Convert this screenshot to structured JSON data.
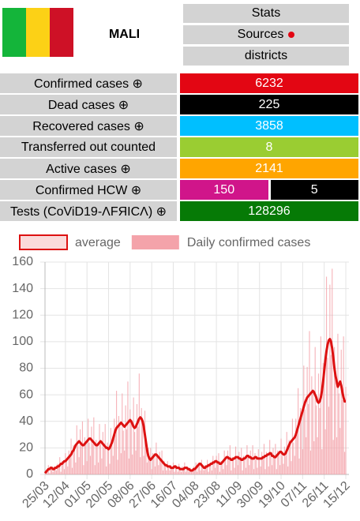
{
  "header": {
    "country": "MALI",
    "buttons": [
      "Stats",
      "Sources",
      "districts"
    ]
  },
  "table": {
    "rows": [
      {
        "label": "Confirmed cases ⊕",
        "values": [
          6232
        ],
        "colors": [
          "#e30613"
        ]
      },
      {
        "label": "Dead cases ⊕",
        "values": [
          225
        ],
        "colors": [
          "#000000"
        ]
      },
      {
        "label": "Recovered cases ⊕",
        "values": [
          3858
        ],
        "colors": [
          "#00bfff"
        ]
      },
      {
        "label": "Transferred out counted",
        "values": [
          8
        ],
        "colors": [
          "#9acd32"
        ]
      },
      {
        "label": "Active cases ⊕",
        "values": [
          2141
        ],
        "colors": [
          "#ffa500"
        ]
      },
      {
        "label": "Confirmed HCW ⊕",
        "values": [
          150,
          5
        ],
        "colors": [
          "#d0158a",
          "#000000"
        ]
      },
      {
        "label": "Tests (CoViD19-ΛFЯICΛ) ⊕",
        "values": [
          128296
        ],
        "colors": [
          "#067a06"
        ]
      }
    ]
  },
  "chart_data": {
    "type": "bar",
    "categories": [
      "25/03",
      null,
      null,
      null,
      null,
      null,
      null,
      null,
      null,
      null,
      null,
      null,
      null,
      null,
      null,
      null,
      null,
      null,
      "12/04",
      null,
      null,
      null,
      null,
      null,
      null,
      null,
      null,
      null,
      null,
      null,
      null,
      null,
      null,
      null,
      null,
      null,
      null,
      "01/05",
      null,
      null,
      null,
      null,
      null,
      null,
      null,
      null,
      null,
      null,
      null,
      null,
      null,
      null,
      null,
      null,
      null,
      null,
      "20/05",
      null,
      null,
      null,
      null,
      null,
      null,
      null,
      null,
      null,
      null,
      null,
      null,
      null,
      null,
      null,
      null,
      null,
      null,
      "08/06",
      null,
      null,
      null,
      null,
      null,
      null,
      null,
      null,
      null,
      null,
      null,
      null,
      null,
      null,
      null,
      null,
      null,
      null,
      "27/06",
      null,
      null,
      null,
      null,
      null,
      null,
      null,
      null,
      null,
      null,
      null,
      null,
      null,
      null,
      null,
      null,
      null,
      null,
      "16/07",
      null,
      null,
      null,
      null,
      null,
      null,
      null,
      null,
      null,
      null,
      null,
      null,
      null,
      null,
      null,
      null,
      null,
      null,
      "04/08",
      null,
      null,
      null,
      null,
      null,
      null,
      null,
      null,
      null,
      null,
      null,
      null,
      null,
      null,
      null,
      null,
      null,
      null,
      "23/08",
      null,
      null,
      null,
      null,
      null,
      null,
      null,
      null,
      null,
      null,
      null,
      null,
      null,
      null,
      null,
      null,
      null,
      null,
      "11/09",
      null,
      null,
      null,
      null,
      null,
      null,
      null,
      null,
      null,
      null,
      null,
      null,
      null,
      null,
      null,
      null,
      null,
      null,
      "30/09",
      null,
      null,
      null,
      null,
      null,
      null,
      null,
      null,
      null,
      null,
      null,
      null,
      null,
      null,
      null,
      null,
      null,
      null,
      "19/10",
      null,
      null,
      null,
      null,
      null,
      null,
      null,
      null,
      null,
      null,
      null,
      null,
      null,
      null,
      null,
      null,
      null,
      null,
      "07/11",
      null,
      null,
      null,
      null,
      null,
      null,
      null,
      null,
      null,
      null,
      null,
      null,
      null,
      null,
      null,
      null,
      null,
      null,
      "26/11",
      null,
      null,
      null,
      null,
      null,
      null,
      null,
      null,
      null,
      null,
      null,
      null,
      null,
      null,
      null,
      null,
      null,
      null,
      "15/12"
    ],
    "series": [
      {
        "name": "average",
        "type": "line",
        "color": "#dd1111",
        "values": [
          1,
          2,
          3,
          4,
          4,
          5,
          5,
          4,
          4,
          5,
          5,
          6,
          6,
          7,
          8,
          8,
          9,
          10,
          10,
          11,
          12,
          13,
          14,
          15,
          17,
          18,
          20,
          22,
          23,
          24,
          25,
          24,
          23,
          22,
          22,
          23,
          24,
          25,
          26,
          27,
          27,
          26,
          25,
          24,
          23,
          22,
          22,
          23,
          24,
          25,
          24,
          23,
          22,
          21,
          20,
          20,
          19,
          20,
          22,
          24,
          27,
          30,
          33,
          35,
          36,
          37,
          38,
          39,
          38,
          37,
          36,
          37,
          38,
          39,
          40,
          41,
          40,
          38,
          36,
          35,
          36,
          38,
          40,
          42,
          43,
          42,
          40,
          36,
          30,
          24,
          18,
          14,
          12,
          11,
          12,
          13,
          14,
          15,
          15,
          14,
          13,
          12,
          11,
          10,
          9,
          8,
          7,
          7,
          6,
          6,
          6,
          5,
          5,
          5,
          6,
          6,
          5,
          5,
          5,
          4,
          4,
          4,
          4,
          5,
          5,
          5,
          4,
          4,
          3,
          3,
          3,
          4,
          4,
          5,
          6,
          7,
          8,
          8,
          7,
          6,
          5,
          5,
          6,
          6,
          7,
          7,
          8,
          8,
          9,
          9,
          10,
          10,
          9,
          9,
          8,
          8,
          9,
          10,
          11,
          12,
          13,
          13,
          12,
          12,
          11,
          11,
          12,
          12,
          13,
          13,
          13,
          12,
          12,
          11,
          11,
          12,
          12,
          13,
          14,
          14,
          13,
          13,
          12,
          12,
          12,
          13,
          13,
          12,
          12,
          12,
          12,
          12,
          13,
          13,
          14,
          14,
          15,
          15,
          16,
          16,
          14,
          14,
          13,
          13,
          14,
          15,
          16,
          17,
          17,
          16,
          15,
          15,
          16,
          18,
          20,
          22,
          24,
          25,
          26,
          27,
          28,
          30,
          33,
          36,
          39,
          42,
          45,
          48,
          51,
          54,
          56,
          58,
          59,
          60,
          61,
          62,
          63,
          62,
          60,
          58,
          55,
          54,
          55,
          58,
          63,
          70,
          78,
          86,
          93,
          98,
          101,
          102,
          100,
          95,
          88,
          80,
          74,
          70,
          66,
          68,
          70,
          67,
          62,
          58,
          55,
          55
        ]
      },
      {
        "name": "Daily confirmed cases",
        "type": "bar",
        "color": "#f4a3aa",
        "values": [
          1,
          3,
          3,
          7,
          1,
          6,
          5,
          2,
          6,
          5,
          3,
          8,
          5,
          13,
          2,
          10,
          9,
          4,
          16,
          10,
          6,
          18,
          13,
          27,
          5,
          22,
          20,
          9,
          37,
          22,
          13,
          34,
          21,
          40,
          7,
          28,
          24,
          10,
          42,
          24,
          14,
          36,
          23,
          43,
          7,
          26,
          22,
          9,
          38,
          23,
          12,
          32,
          20,
          38,
          6,
          24,
          19,
          8,
          35,
          22,
          14,
          42,
          30,
          63,
          11,
          44,
          38,
          16,
          61,
          33,
          18,
          52,
          34,
          70,
          12,
          49,
          40,
          15,
          58,
          32,
          18,
          53,
          36,
          76,
          13,
          50,
          40,
          14,
          48,
          22,
          9,
          20,
          11,
          20,
          4,
          16,
          14,
          6,
          24,
          13,
          7,
          17,
          10,
          18,
          3,
          10,
          7,
          3,
          10,
          5,
          3,
          7,
          5,
          9,
          2,
          7,
          5,
          2,
          8,
          4,
          2,
          6,
          4,
          9,
          2,
          6,
          4,
          2,
          5,
          3,
          2,
          6,
          4,
          9,
          2,
          8,
          8,
          3,
          11,
          5,
          3,
          7,
          5,
          11,
          2,
          8,
          8,
          3,
          14,
          8,
          5,
          14,
          8,
          16,
          2,
          10,
          9,
          4,
          18,
          11,
          7,
          18,
          11,
          22,
          3,
          13,
          12,
          5,
          21,
          12,
          7,
          17,
          11,
          20,
          3,
          14,
          12,
          5,
          22,
          13,
          7,
          18,
          11,
          22,
          4,
          16,
          13,
          5,
          19,
          11,
          6,
          17,
          12,
          23,
          4,
          17,
          15,
          6,
          26,
          14,
          7,
          20,
          12,
          23,
          4,
          18,
          16,
          7,
          27,
          14,
          8,
          21,
          14,
          32,
          6,
          26,
          24,
          10,
          42,
          24,
          14,
          42,
          30,
          65,
          12,
          50,
          45,
          19,
          82,
          49,
          28,
          81,
          53,
          108,
          18,
          74,
          63,
          25,
          96,
          52,
          28,
          76,
          50,
          104,
          19,
          84,
          78,
          34,
          149,
          88,
          51,
          143,
          90,
          155,
          26,
          96,
          74,
          28,
          106,
          61,
          35,
          94,
          56,
          104,
          17,
          66
        ]
      }
    ],
    "ylim": [
      0,
      160
    ],
    "yticks": [
      0,
      20,
      40,
      60,
      80,
      100,
      120,
      140,
      160
    ],
    "grid": true
  }
}
